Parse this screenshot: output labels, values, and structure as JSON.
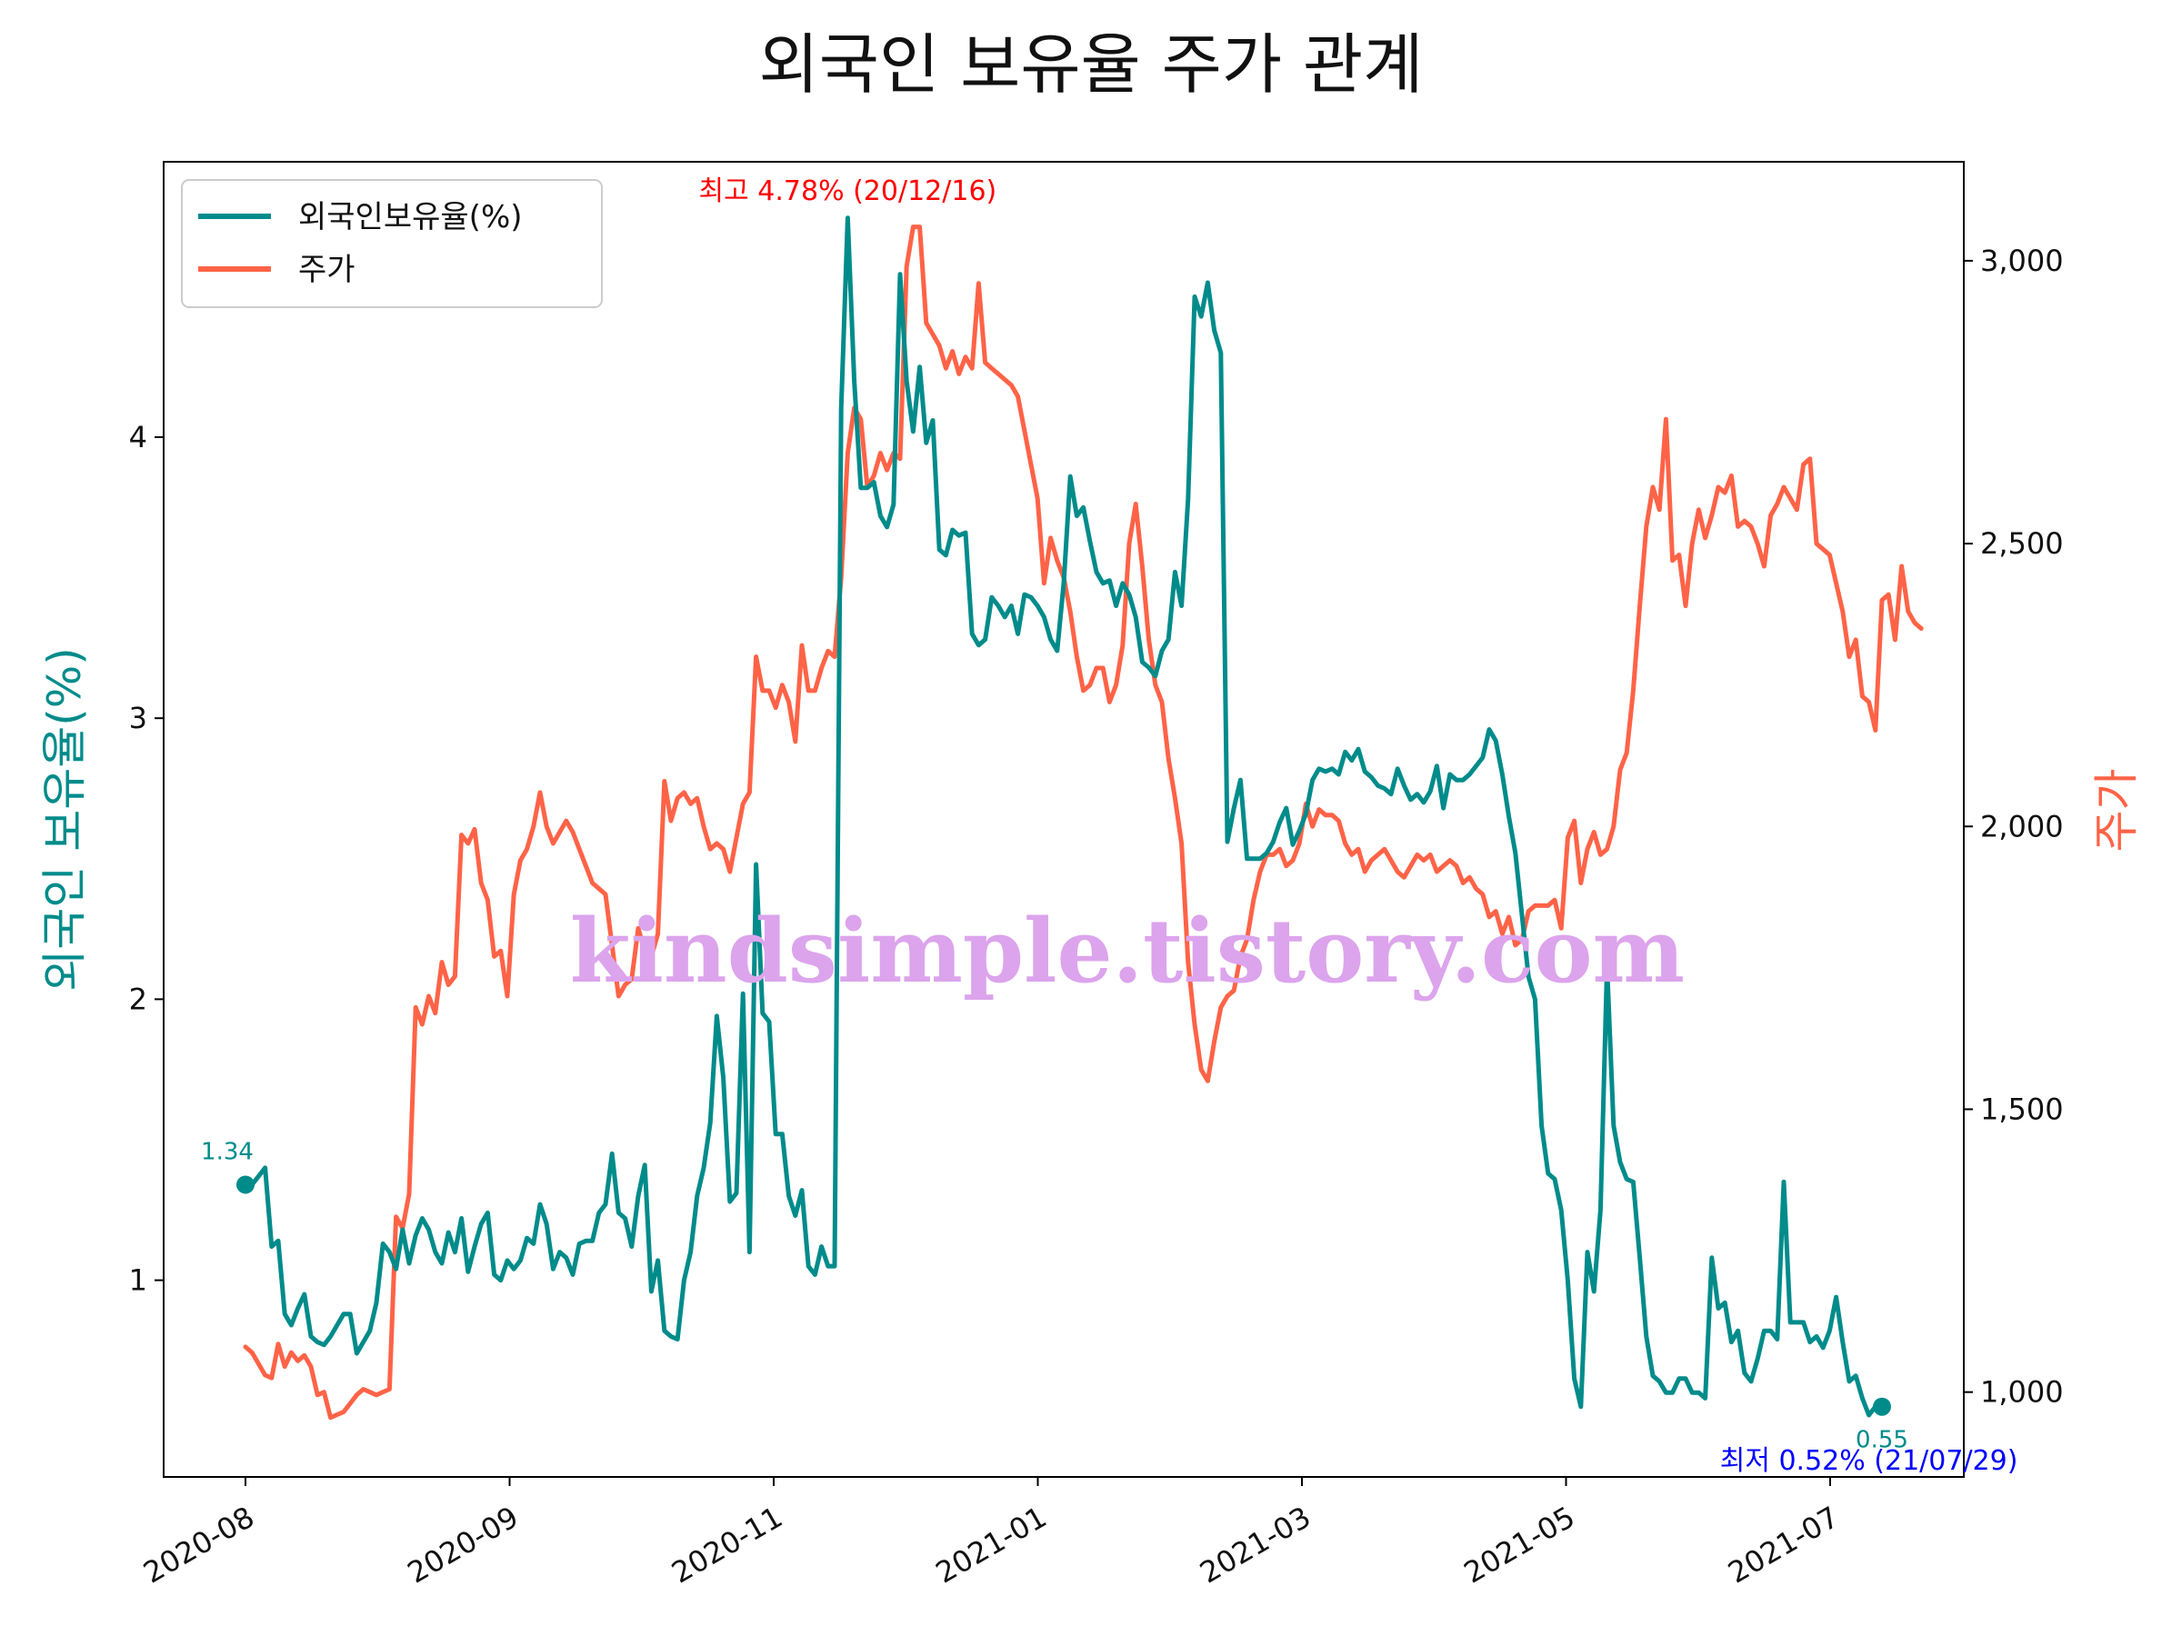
{
  "chart_data": {
    "type": "line",
    "title": "외국인 보유율 주가 관계",
    "ylabel_left": "외국인 보유율(%)",
    "ylabel_right": "주가",
    "watermark": "kindsimple.tistory.com",
    "colors": {
      "foreign": "#008b8b",
      "price": "#ff6347",
      "max_annot": "#ff0000",
      "min_annot": "#0000ff"
    },
    "x_ticks": [
      "2020-08",
      "2020-09",
      "2020-11",
      "2021-01",
      "2021-03",
      "2021-05",
      "2021-07"
    ],
    "y_left_ticks": [
      "1",
      "2",
      "3",
      "4"
    ],
    "y_left_tick_values": [
      1,
      2,
      3,
      4
    ],
    "y_left_range": [
      0.3,
      4.98
    ],
    "y_right_ticks": [
      "1,000",
      "1,500",
      "2,000",
      "2,500",
      "3,000"
    ],
    "y_right_tick_values": [
      1000,
      1500,
      2000,
      2500,
      3000
    ],
    "y_right_range": [
      850,
      3175
    ],
    "legend": {
      "placement": "top-left",
      "items": [
        "외국인보유율(%)",
        "주가"
      ]
    },
    "annotations": {
      "start_label": "1.34",
      "end_label": "0.55",
      "max_label": "최고 4.78% (20/12/16)",
      "min_label": "최저 0.52% (21/07/29)"
    },
    "series": [
      {
        "name": "외국인보유율(%)",
        "axis": "left",
        "values": [
          1.34,
          1.34,
          1.37,
          1.4,
          1.12,
          1.14,
          0.88,
          0.84,
          0.9,
          0.95,
          0.8,
          0.78,
          0.77,
          0.8,
          0.84,
          0.88,
          0.88,
          0.74,
          0.78,
          0.82,
          0.92,
          1.13,
          1.1,
          1.04,
          1.18,
          1.06,
          1.16,
          1.22,
          1.18,
          1.1,
          1.06,
          1.17,
          1.1,
          1.22,
          1.03,
          1.12,
          1.2,
          1.24,
          1.02,
          1.0,
          1.07,
          1.04,
          1.07,
          1.15,
          1.13,
          1.27,
          1.2,
          1.04,
          1.1,
          1.08,
          1.02,
          1.13,
          1.14,
          1.14,
          1.24,
          1.27,
          1.45,
          1.24,
          1.22,
          1.12,
          1.3,
          1.41,
          0.96,
          1.07,
          0.82,
          0.8,
          0.79,
          1.0,
          1.1,
          1.3,
          1.4,
          1.56,
          1.94,
          1.72,
          1.28,
          1.31,
          2.02,
          1.1,
          2.48,
          1.95,
          1.92,
          1.52,
          1.52,
          1.3,
          1.23,
          1.32,
          1.05,
          1.02,
          1.12,
          1.05,
          1.05,
          4.1,
          4.78,
          4.2,
          3.82,
          3.82,
          3.84,
          3.72,
          3.68,
          3.76,
          4.58,
          4.2,
          4.02,
          4.25,
          3.98,
          4.06,
          3.6,
          3.58,
          3.67,
          3.65,
          3.66,
          3.3,
          3.26,
          3.28,
          3.43,
          3.4,
          3.36,
          3.4,
          3.3,
          3.44,
          3.43,
          3.4,
          3.36,
          3.28,
          3.24,
          3.48,
          3.86,
          3.72,
          3.75,
          3.63,
          3.52,
          3.48,
          3.49,
          3.4,
          3.48,
          3.44,
          3.36,
          3.2,
          3.18,
          3.15,
          3.24,
          3.28,
          3.52,
          3.4,
          3.78,
          4.5,
          4.43,
          4.55,
          4.38,
          4.3,
          2.56,
          2.68,
          2.78,
          2.5,
          2.5,
          2.5,
          2.52,
          2.56,
          2.63,
          2.68,
          2.55,
          2.6,
          2.66,
          2.78,
          2.82,
          2.81,
          2.82,
          2.8,
          2.88,
          2.85,
          2.89,
          2.81,
          2.79,
          2.76,
          2.75,
          2.73,
          2.82,
          2.76,
          2.71,
          2.73,
          2.7,
          2.74,
          2.83,
          2.68,
          2.8,
          2.78,
          2.78,
          2.8,
          2.83,
          2.86,
          2.96,
          2.92,
          2.8,
          2.65,
          2.52,
          2.3,
          2.08,
          2.0,
          1.55,
          1.38,
          1.36,
          1.25,
          1.0,
          0.65,
          0.55,
          1.1,
          0.96,
          1.25,
          2.12,
          1.55,
          1.42,
          1.36,
          1.35,
          1.08,
          0.8,
          0.66,
          0.64,
          0.6,
          0.6,
          0.65,
          0.65,
          0.6,
          0.6,
          0.58,
          1.08,
          0.9,
          0.92,
          0.78,
          0.82,
          0.67,
          0.64,
          0.72,
          0.82,
          0.82,
          0.79,
          1.35,
          0.85,
          0.85,
          0.85,
          0.78,
          0.8,
          0.76,
          0.82,
          0.94,
          0.78,
          0.64,
          0.66,
          0.58,
          0.52,
          0.55,
          0.55
        ]
      },
      {
        "name": "주가",
        "axis": "right",
        "values": [
          1080,
          1070,
          1050,
          1030,
          1025,
          1085,
          1045,
          1070,
          1055,
          1065,
          1045,
          995,
          1000,
          955,
          960,
          965,
          980,
          995,
          1005,
          1000,
          995,
          1000,
          1005,
          1310,
          1290,
          1350,
          1680,
          1650,
          1700,
          1670,
          1760,
          1720,
          1735,
          1985,
          1970,
          1995,
          1900,
          1870,
          1770,
          1780,
          1700,
          1880,
          1940,
          1960,
          2000,
          2060,
          2000,
          1970,
          1990,
          2010,
          1990,
          1960,
          1930,
          1900,
          1890,
          1880,
          1790,
          1700,
          1720,
          1730,
          1820,
          1780,
          1770,
          1810,
          2080,
          2010,
          2050,
          2060,
          2040,
          2050,
          2000,
          1960,
          1970,
          1960,
          1920,
          1980,
          2040,
          2060,
          2300,
          2240,
          2240,
          2210,
          2250,
          2220,
          2150,
          2320,
          2240,
          2240,
          2280,
          2310,
          2300,
          2440,
          2660,
          2740,
          2720,
          2600,
          2620,
          2660,
          2630,
          2660,
          2650,
          2990,
          3060,
          3060,
          2890,
          2870,
          2850,
          2810,
          2840,
          2800,
          2830,
          2810,
          2960,
          2820,
          2810,
          2800,
          2790,
          2780,
          2760,
          2700,
          2640,
          2580,
          2430,
          2510,
          2470,
          2440,
          2380,
          2300,
          2240,
          2250,
          2280,
          2280,
          2220,
          2250,
          2320,
          2500,
          2570,
          2460,
          2330,
          2250,
          2220,
          2120,
          2050,
          1970,
          1760,
          1650,
          1570,
          1550,
          1620,
          1680,
          1700,
          1710,
          1770,
          1800,
          1870,
          1920,
          1950,
          1950,
          1960,
          1930,
          1940,
          1970,
          2040,
          2000,
          2030,
          2020,
          2020,
          2010,
          1970,
          1950,
          1960,
          1920,
          1940,
          1950,
          1960,
          1940,
          1920,
          1910,
          1930,
          1950,
          1940,
          1950,
          1920,
          1930,
          1940,
          1930,
          1900,
          1910,
          1890,
          1880,
          1840,
          1850,
          1810,
          1840,
          1790,
          1800,
          1850,
          1860,
          1860,
          1860,
          1870,
          1820,
          1980,
          2010,
          1900,
          1960,
          1990,
          1950,
          1960,
          2000,
          2100,
          2130,
          2240,
          2390,
          2530,
          2600,
          2560,
          2720,
          2470,
          2480,
          2390,
          2500,
          2560,
          2510,
          2550,
          2600,
          2590,
          2620,
          2530,
          2540,
          2530,
          2500,
          2460,
          2550,
          2570,
          2600,
          2580,
          2560,
          2640,
          2650,
          2500,
          2490,
          2480,
          2430,
          2380,
          2300,
          2330,
          2230,
          2220,
          2170,
          2400,
          2410,
          2330,
          2460,
          2380,
          2360,
          2350
        ]
      }
    ]
  }
}
